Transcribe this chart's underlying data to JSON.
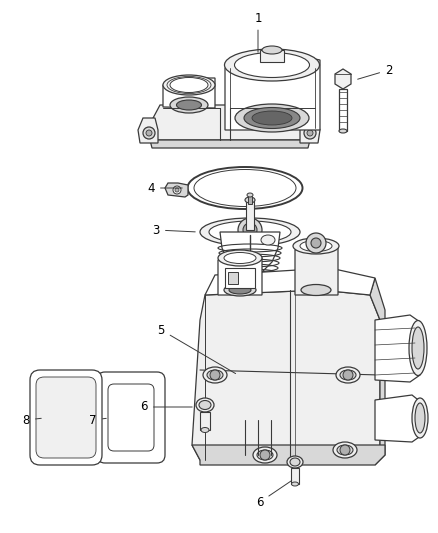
{
  "background_color": "#ffffff",
  "fig_width": 4.38,
  "fig_height": 5.33,
  "dpi": 100,
  "line_color": "#3a3a3a",
  "line_color_dark": "#1a1a1a",
  "fill_light": "#f0f0f0",
  "fill_mid": "#d8d8d8",
  "fill_dark": "#b0b0b0",
  "label_fontsize": 8.5,
  "text_color": "#000000"
}
